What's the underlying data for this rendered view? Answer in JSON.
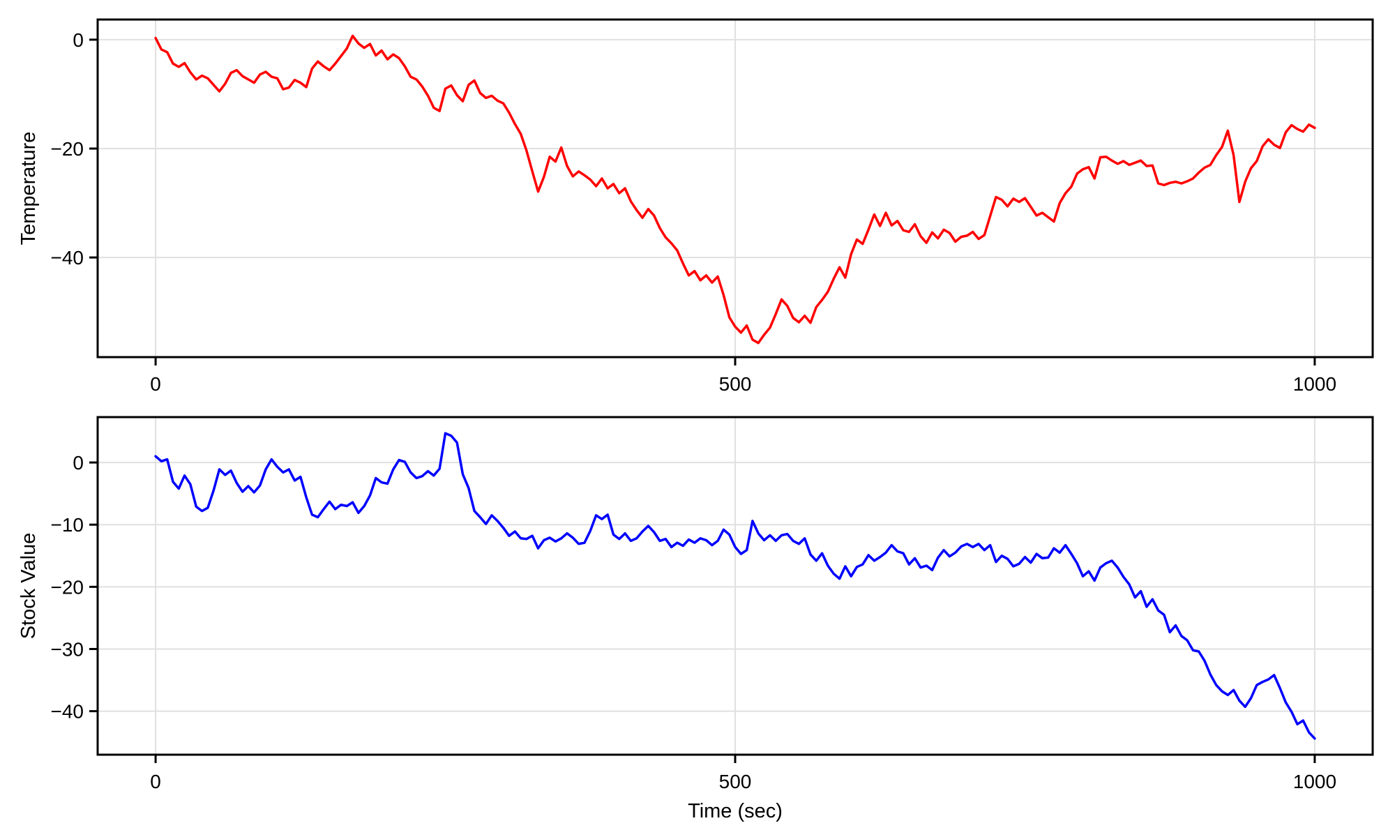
{
  "figure": {
    "background": "#ffffff",
    "grid_color": "#e0e0e0",
    "spine_color": "#000000",
    "tick_color": "#000000",
    "text_color": "#000000"
  },
  "chart_data": [
    {
      "type": "line",
      "panel": "top",
      "series_name": "temperature",
      "title": "",
      "xlabel": "",
      "ylabel": "Temperature",
      "line_color": "#ff0000",
      "line_width": 3.5,
      "grid": true,
      "legend": "none",
      "xlim": [
        -50,
        1050
      ],
      "ylim": [
        -58.3,
        3.7
      ],
      "xticks": [
        0,
        500,
        1000
      ],
      "xtick_labels": [
        "0",
        "500",
        "1000"
      ],
      "yticks": [
        0,
        -20,
        -40
      ],
      "ytick_labels": [
        "0",
        "−20",
        "−40"
      ],
      "x": [
        0,
        5,
        10,
        15,
        20,
        25,
        30,
        35,
        40,
        45,
        50,
        55,
        60,
        65,
        70,
        75,
        80,
        85,
        90,
        95,
        100,
        105,
        110,
        115,
        120,
        125,
        130,
        135,
        140,
        145,
        150,
        155,
        160,
        165,
        170,
        175,
        180,
        185,
        190,
        195,
        200,
        205,
        210,
        215,
        220,
        225,
        230,
        235,
        240,
        245,
        250,
        255,
        260,
        265,
        270,
        275,
        280,
        285,
        290,
        295,
        300,
        305,
        310,
        315,
        320,
        325,
        330,
        335,
        340,
        345,
        350,
        355,
        360,
        365,
        370,
        375,
        380,
        385,
        390,
        395,
        400,
        405,
        410,
        415,
        420,
        425,
        430,
        435,
        440,
        445,
        450,
        455,
        460,
        465,
        470,
        475,
        480,
        485,
        490,
        495,
        500,
        505,
        510,
        515,
        520,
        525,
        530,
        535,
        540,
        545,
        550,
        555,
        560,
        565,
        570,
        575,
        580,
        585,
        590,
        595,
        600,
        605,
        610,
        615,
        620,
        625,
        630,
        635,
        640,
        645,
        650,
        655,
        660,
        665,
        670,
        675,
        680,
        685,
        690,
        695,
        700,
        705,
        710,
        715,
        720,
        725,
        730,
        735,
        740,
        745,
        750,
        755,
        760,
        765,
        770,
        775,
        780,
        785,
        790,
        795,
        800,
        805,
        810,
        815,
        820,
        825,
        830,
        835,
        840,
        845,
        850,
        855,
        860,
        865,
        870,
        875,
        880,
        885,
        890,
        895,
        900,
        905,
        910,
        915,
        920,
        925,
        930,
        935,
        940,
        945,
        950,
        955,
        960,
        965,
        970,
        975,
        980,
        985,
        990,
        995,
        1000
      ],
      "y": [
        0.3,
        -1.8,
        -2.3,
        -4.4,
        -5.0,
        -4.3,
        -6.0,
        -7.3,
        -6.6,
        -7.1,
        -8.3,
        -9.5,
        -8.1,
        -6.1,
        -5.6,
        -6.7,
        -7.3,
        -7.9,
        -6.4,
        -5.9,
        -6.8,
        -7.1,
        -9.1,
        -8.8,
        -7.4,
        -7.9,
        -8.7,
        -5.3,
        -4.0,
        -4.9,
        -5.6,
        -4.4,
        -3.0,
        -1.6,
        0.7,
        -0.7,
        -1.5,
        -0.8,
        -2.9,
        -2.0,
        -3.6,
        -2.7,
        -3.4,
        -4.9,
        -6.8,
        -7.3,
        -8.6,
        -10.3,
        -12.5,
        -13.1,
        -9.0,
        -8.4,
        -10.2,
        -11.3,
        -8.3,
        -7.5,
        -9.8,
        -10.7,
        -10.3,
        -11.2,
        -11.7,
        -13.4,
        -15.5,
        -17.3,
        -20.4,
        -24.2,
        -27.9,
        -25.2,
        -21.5,
        -22.4,
        -19.8,
        -23.2,
        -25.1,
        -24.2,
        -24.9,
        -25.7,
        -26.9,
        -25.5,
        -27.3,
        -26.5,
        -28.2,
        -27.3,
        -29.7,
        -31.3,
        -32.7,
        -31.1,
        -32.3,
        -34.6,
        -36.3,
        -37.4,
        -38.7,
        -41.1,
        -43.3,
        -42.5,
        -44.2,
        -43.3,
        -44.6,
        -43.5,
        -46.9,
        -51.0,
        -52.7,
        -53.8,
        -52.5,
        -55.1,
        -55.7,
        -54.2,
        -52.9,
        -50.4,
        -47.7,
        -48.9,
        -51.1,
        -51.9,
        -50.7,
        -52.0,
        -49.1,
        -47.8,
        -46.3,
        -43.9,
        -41.8,
        -43.7,
        -39.4,
        -36.7,
        -37.5,
        -34.9,
        -32.1,
        -34.2,
        -31.8,
        -34.1,
        -33.3,
        -35.0,
        -35.3,
        -33.9,
        -36.1,
        -37.3,
        -35.4,
        -36.5,
        -34.9,
        -35.5,
        -37.1,
        -36.2,
        -36.0,
        -35.3,
        -36.6,
        -35.9,
        -32.4,
        -28.9,
        -29.4,
        -30.6,
        -29.2,
        -29.8,
        -29.1,
        -30.7,
        -32.3,
        -31.8,
        -32.6,
        -33.4,
        -30.0,
        -28.2,
        -27.0,
        -24.6,
        -23.8,
        -23.4,
        -25.5,
        -21.6,
        -21.5,
        -22.2,
        -22.8,
        -22.3,
        -23.0,
        -22.6,
        -22.2,
        -23.2,
        -23.1,
        -26.4,
        -26.7,
        -26.3,
        -26.1,
        -26.4,
        -26.0,
        -25.5,
        -24.4,
        -23.5,
        -23.0,
        -21.2,
        -19.7,
        -16.7,
        -21.2,
        -29.8,
        -26.1,
        -23.6,
        -22.3,
        -19.6,
        -18.3,
        -19.3,
        -19.9,
        -17.0,
        -15.7,
        -16.4,
        -16.9,
        -15.6,
        -16.2
      ]
    },
    {
      "type": "line",
      "panel": "bottom",
      "series_name": "stock-value",
      "title": "",
      "xlabel": "Time (sec)",
      "ylabel": "Stock Value",
      "line_color": "#0000ff",
      "line_width": 3.5,
      "grid": true,
      "legend": "none",
      "xlim": [
        -50,
        1050
      ],
      "ylim": [
        -47.0,
        7.3
      ],
      "xticks": [
        0,
        500,
        1000
      ],
      "xtick_labels": [
        "0",
        "500",
        "1000"
      ],
      "yticks": [
        0,
        -10,
        -20,
        -30,
        -40
      ],
      "ytick_labels": [
        "0",
        "−10",
        "−20",
        "−30",
        "−40"
      ],
      "x": [
        0,
        5,
        10,
        15,
        20,
        25,
        30,
        35,
        40,
        45,
        50,
        55,
        60,
        65,
        70,
        75,
        80,
        85,
        90,
        95,
        100,
        105,
        110,
        115,
        120,
        125,
        130,
        135,
        140,
        145,
        150,
        155,
        160,
        165,
        170,
        175,
        180,
        185,
        190,
        195,
        200,
        205,
        210,
        215,
        220,
        225,
        230,
        235,
        240,
        245,
        250,
        255,
        260,
        265,
        270,
        275,
        280,
        285,
        290,
        295,
        300,
        305,
        310,
        315,
        320,
        325,
        330,
        335,
        340,
        345,
        350,
        355,
        360,
        365,
        370,
        375,
        380,
        385,
        390,
        395,
        400,
        405,
        410,
        415,
        420,
        425,
        430,
        435,
        440,
        445,
        450,
        455,
        460,
        465,
        470,
        475,
        480,
        485,
        490,
        495,
        500,
        505,
        510,
        515,
        520,
        525,
        530,
        535,
        540,
        545,
        550,
        555,
        560,
        565,
        570,
        575,
        580,
        585,
        590,
        595,
        600,
        605,
        610,
        615,
        620,
        625,
        630,
        635,
        640,
        645,
        650,
        655,
        660,
        665,
        670,
        675,
        680,
        685,
        690,
        695,
        700,
        705,
        710,
        715,
        720,
        725,
        730,
        735,
        740,
        745,
        750,
        755,
        760,
        765,
        770,
        775,
        780,
        785,
        790,
        795,
        800,
        805,
        810,
        815,
        820,
        825,
        830,
        835,
        840,
        845,
        850,
        855,
        860,
        865,
        870,
        875,
        880,
        885,
        890,
        895,
        900,
        905,
        910,
        915,
        920,
        925,
        930,
        935,
        940,
        945,
        950,
        955,
        960,
        965,
        970,
        975,
        980,
        985,
        990,
        995,
        1000
      ],
      "y": [
        1.0,
        0.2,
        0.5,
        -3.1,
        -4.2,
        -2.1,
        -3.5,
        -7.1,
        -7.8,
        -7.3,
        -4.5,
        -1.1,
        -2.0,
        -1.3,
        -3.3,
        -4.7,
        -3.8,
        -4.8,
        -3.7,
        -1.1,
        0.5,
        -0.7,
        -1.6,
        -1.1,
        -2.9,
        -2.3,
        -5.6,
        -8.4,
        -8.8,
        -7.5,
        -6.3,
        -7.5,
        -6.8,
        -7.0,
        -6.4,
        -8.1,
        -7.0,
        -5.3,
        -2.5,
        -3.2,
        -3.4,
        -1.1,
        0.4,
        0.1,
        -1.6,
        -2.5,
        -2.2,
        -1.4,
        -2.1,
        -1.0,
        4.7,
        4.3,
        3.2,
        -1.9,
        -4.1,
        -7.8,
        -8.8,
        -9.9,
        -8.5,
        -9.4,
        -10.5,
        -11.8,
        -11.1,
        -12.2,
        -12.3,
        -11.8,
        -13.8,
        -12.5,
        -12.1,
        -12.7,
        -12.2,
        -11.4,
        -12.1,
        -13.1,
        -12.9,
        -11.0,
        -8.5,
        -9.1,
        -8.4,
        -11.6,
        -12.3,
        -11.4,
        -12.6,
        -12.2,
        -11.1,
        -10.2,
        -11.2,
        -12.6,
        -12.3,
        -13.6,
        -12.9,
        -13.4,
        -12.4,
        -12.9,
        -12.2,
        -12.5,
        -13.3,
        -12.6,
        -10.8,
        -11.6,
        -13.6,
        -14.7,
        -14.1,
        -9.4,
        -11.4,
        -12.5,
        -11.7,
        -12.6,
        -11.7,
        -11.5,
        -12.6,
        -13.1,
        -12.2,
        -14.8,
        -15.8,
        -14.6,
        -16.6,
        -17.9,
        -18.7,
        -16.7,
        -18.3,
        -16.8,
        -16.4,
        -14.9,
        -15.8,
        -15.2,
        -14.5,
        -13.3,
        -14.3,
        -14.6,
        -16.4,
        -15.4,
        -16.9,
        -16.6,
        -17.3,
        -15.3,
        -14.1,
        -15.1,
        -14.5,
        -13.5,
        -13.1,
        -13.6,
        -13.1,
        -14.1,
        -13.3,
        -16.0,
        -15.0,
        -15.5,
        -16.7,
        -16.3,
        -15.2,
        -16.1,
        -14.7,
        -15.4,
        -15.3,
        -13.8,
        -14.5,
        -13.3,
        -14.7,
        -16.2,
        -18.3,
        -17.5,
        -19.0,
        -16.9,
        -16.2,
        -15.8,
        -16.9,
        -18.4,
        -19.6,
        -21.7,
        -20.7,
        -23.2,
        -22.0,
        -23.8,
        -24.5,
        -27.3,
        -26.2,
        -27.9,
        -28.6,
        -30.2,
        -30.4,
        -31.9,
        -34.1,
        -35.8,
        -36.8,
        -37.4,
        -36.6,
        -38.3,
        -39.3,
        -37.9,
        -35.8,
        -35.3,
        -34.9,
        -34.2,
        -36.3,
        -38.6,
        -40.1,
        -42.1,
        -41.5,
        -43.4,
        -44.4
      ]
    }
  ]
}
